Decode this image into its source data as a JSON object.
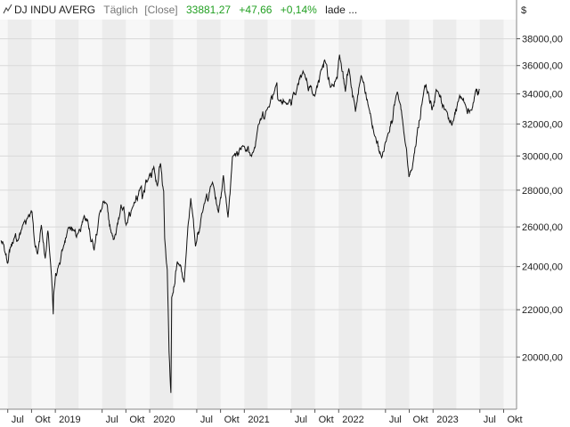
{
  "legend": {
    "instrument": "DJ INDU AVERG",
    "interval": "Täglich",
    "price_type": "[Close]",
    "last_value": "33881,27",
    "change_abs": "+47,66",
    "change_pct": "+0,14%",
    "status": "lade ..."
  },
  "currency_symbol": "$",
  "colors": {
    "line": "#111111",
    "positive": "#22a022",
    "band_alt": "#ececec",
    "plot_bg": "#f7f7f7",
    "grid": "#d9d9d9",
    "axis_text": "#222222",
    "legend_muted": "#777777"
  },
  "chart_data": {
    "type": "line",
    "title": "",
    "xlabel": "",
    "ylabel": "",
    "y_axis_position": "right",
    "grid": true,
    "ylim": [
      18000,
      39500
    ],
    "y_ticks": [
      20000,
      22000,
      24000,
      26000,
      28000,
      30000,
      32000,
      34000,
      36000,
      38000
    ],
    "y_tick_labels": [
      "20000,00",
      "22000,00",
      "24000,00",
      "26000,00",
      "28000,00",
      "30000,00",
      "32000,00",
      "34000,00",
      "36000,00",
      "38000,00"
    ],
    "x_range": [
      "2018-06-01",
      "2023-11-20"
    ],
    "x_ticks": [
      {
        "date": "2018-07-01",
        "label": "Jul"
      },
      {
        "date": "2018-10-01",
        "label": "Okt"
      },
      {
        "date": "2019-01-01",
        "label": "2019"
      },
      {
        "date": "2019-07-01",
        "label": "Jul"
      },
      {
        "date": "2019-10-01",
        "label": "Okt"
      },
      {
        "date": "2020-01-01",
        "label": "2020"
      },
      {
        "date": "2020-07-01",
        "label": "Jul"
      },
      {
        "date": "2020-10-01",
        "label": "Okt"
      },
      {
        "date": "2021-01-01",
        "label": "2021"
      },
      {
        "date": "2021-07-01",
        "label": "Jul"
      },
      {
        "date": "2021-10-01",
        "label": "Okt"
      },
      {
        "date": "2022-01-01",
        "label": "2022"
      },
      {
        "date": "2022-07-01",
        "label": "Jul"
      },
      {
        "date": "2022-10-01",
        "label": "Okt"
      },
      {
        "date": "2023-01-01",
        "label": "2023"
      },
      {
        "date": "2023-07-01",
        "label": "Jul"
      },
      {
        "date": "2023-10-01",
        "label": "Okt"
      }
    ],
    "shaded_quarters": [
      "2018-07-01",
      "2019-01-01",
      "2019-07-01",
      "2020-01-01",
      "2020-07-01",
      "2021-01-01",
      "2021-07-01",
      "2022-01-01",
      "2022-07-01",
      "2023-01-01",
      "2023-07-01"
    ],
    "series": [
      {
        "name": "DJ INDU AVERG",
        "points": [
          [
            "2018-06-05",
            25300
          ],
          [
            "2018-06-20",
            24700
          ],
          [
            "2018-07-02",
            24200
          ],
          [
            "2018-07-10",
            24900
          ],
          [
            "2018-07-25",
            25400
          ],
          [
            "2018-08-10",
            25300
          ],
          [
            "2018-08-28",
            26100
          ],
          [
            "2018-09-20",
            26650
          ],
          [
            "2018-10-03",
            26800
          ],
          [
            "2018-10-12",
            25300
          ],
          [
            "2018-10-24",
            24600
          ],
          [
            "2018-11-08",
            26100
          ],
          [
            "2018-11-23",
            24400
          ],
          [
            "2018-12-03",
            25800
          ],
          [
            "2018-12-14",
            24100
          ],
          [
            "2018-12-24",
            21800
          ],
          [
            "2018-12-27",
            22900
          ],
          [
            "2019-01-10",
            23900
          ],
          [
            "2019-01-31",
            24900
          ],
          [
            "2019-02-20",
            25950
          ],
          [
            "2019-03-15",
            25800
          ],
          [
            "2019-03-27",
            25600
          ],
          [
            "2019-04-23",
            26600
          ],
          [
            "2019-05-06",
            26400
          ],
          [
            "2019-05-31",
            24800
          ],
          [
            "2019-06-20",
            26700
          ],
          [
            "2019-07-15",
            27300
          ],
          [
            "2019-08-05",
            25700
          ],
          [
            "2019-08-23",
            25600
          ],
          [
            "2019-09-12",
            27200
          ],
          [
            "2019-10-02",
            26100
          ],
          [
            "2019-10-28",
            27100
          ],
          [
            "2019-11-27",
            28150
          ],
          [
            "2019-12-03",
            27500
          ],
          [
            "2019-12-27",
            28650
          ],
          [
            "2020-01-17",
            29350
          ],
          [
            "2020-01-31",
            28250
          ],
          [
            "2020-02-12",
            29550
          ],
          [
            "2020-02-24",
            27950
          ],
          [
            "2020-02-28",
            25400
          ],
          [
            "2020-03-09",
            23850
          ],
          [
            "2020-03-16",
            20200
          ],
          [
            "2020-03-23",
            18600
          ],
          [
            "2020-03-26",
            22550
          ],
          [
            "2020-04-17",
            24250
          ],
          [
            "2020-05-13",
            23250
          ],
          [
            "2020-06-08",
            27550
          ],
          [
            "2020-06-26",
            25000
          ],
          [
            "2020-07-20",
            26700
          ],
          [
            "2020-08-31",
            28450
          ],
          [
            "2020-09-23",
            26750
          ],
          [
            "2020-10-12",
            28850
          ],
          [
            "2020-10-30",
            26500
          ],
          [
            "2020-11-16",
            29950
          ],
          [
            "2020-12-31",
            30600
          ],
          [
            "2021-01-29",
            29980
          ],
          [
            "2021-02-24",
            31950
          ],
          [
            "2021-03-31",
            32980
          ],
          [
            "2021-05-07",
            34800
          ],
          [
            "2021-05-12",
            33600
          ],
          [
            "2021-06-18",
            33300
          ],
          [
            "2021-07-19",
            33950
          ],
          [
            "2021-08-16",
            35600
          ],
          [
            "2021-09-30",
            33850
          ],
          [
            "2021-10-29",
            35800
          ],
          [
            "2021-11-08",
            36400
          ],
          [
            "2021-11-30",
            34450
          ],
          [
            "2021-12-20",
            34950
          ],
          [
            "2022-01-04",
            36800
          ],
          [
            "2022-01-27",
            34150
          ],
          [
            "2022-02-09",
            35800
          ],
          [
            "2022-03-07",
            32800
          ],
          [
            "2022-03-29",
            35300
          ],
          [
            "2022-04-29",
            32950
          ],
          [
            "2022-05-19",
            31300
          ],
          [
            "2022-06-16",
            29900
          ],
          [
            "2022-07-06",
            31100
          ],
          [
            "2022-08-16",
            34150
          ],
          [
            "2022-09-13",
            31100
          ],
          [
            "2022-09-30",
            28750
          ],
          [
            "2022-10-12",
            29200
          ],
          [
            "2022-11-30",
            34600
          ],
          [
            "2022-12-13",
            34150
          ],
          [
            "2022-12-28",
            32900
          ],
          [
            "2023-01-13",
            34300
          ],
          [
            "2023-02-24",
            32800
          ],
          [
            "2023-03-15",
            31900
          ],
          [
            "2023-04-14",
            33900
          ],
          [
            "2023-05-03",
            33400
          ],
          [
            "2023-05-31",
            32900
          ],
          [
            "2023-06-16",
            34300
          ],
          [
            "2023-06-23",
            33900
          ],
          [
            "2023-06-30",
            34300
          ]
        ]
      }
    ]
  }
}
